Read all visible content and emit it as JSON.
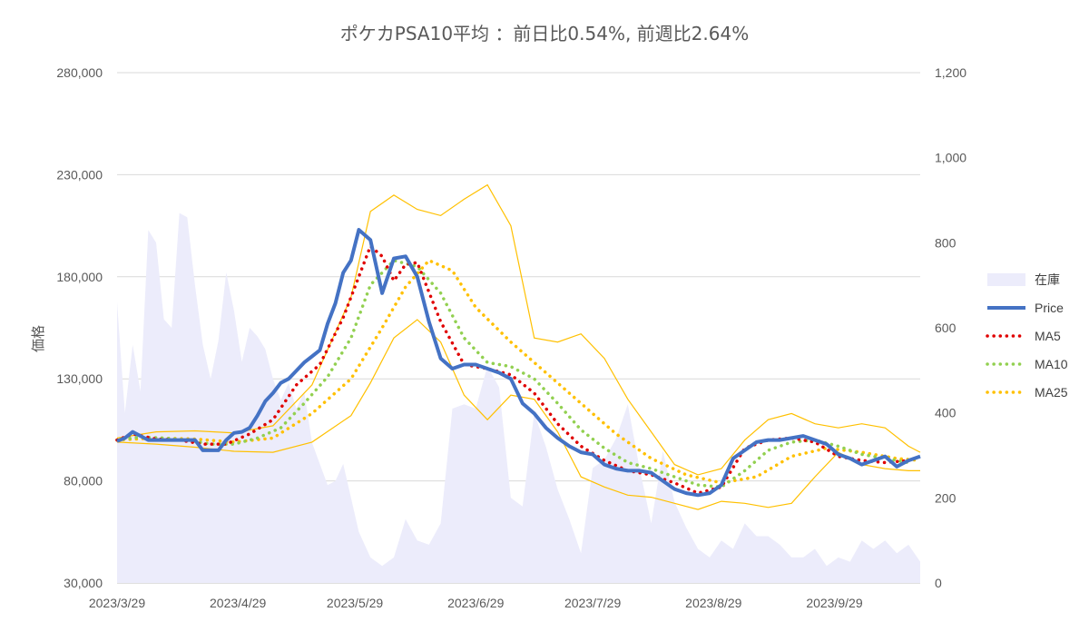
{
  "colors": {
    "stock_area": "#ececfb",
    "price": "#4472c4",
    "ma5": "#e00000",
    "ma10": "#92d050",
    "ma25": "#ffc000",
    "band": "#ffc000",
    "grid": "#d9d9d9",
    "text": "#595959"
  },
  "chart_data": {
    "type": "line",
    "title": "ポケカPSA10平均 ：前日比0.54%, 前週比2.64%",
    "ylabel": "価格",
    "y_left": {
      "ticks": [
        "30,000",
        "80,000",
        "130,000",
        "180,000",
        "230,000",
        "280,000"
      ],
      "range": [
        30000,
        280000
      ]
    },
    "y_right": {
      "ticks": [
        "0",
        "200",
        "400",
        "600",
        "800",
        "1,000",
        "1,200"
      ],
      "range": [
        0,
        1200
      ]
    },
    "x_ticks": [
      "2023/3/29",
      "2023/4/29",
      "2023/5/29",
      "2023/6/29",
      "2023/7/29",
      "2023/8/29",
      "2023/9/29"
    ],
    "x_range": [
      "2023/3/29",
      "2023/10/21"
    ],
    "grid": "horizontal",
    "legend_position": "right",
    "series": [
      {
        "name": "在庫",
        "kind": "area",
        "axis": "right",
        "x": [
          "2023/3/29",
          "2023/3/31",
          "2023/4/2",
          "2023/4/4",
          "2023/4/6",
          "2023/4/8",
          "2023/4/10",
          "2023/4/12",
          "2023/4/14",
          "2023/4/16",
          "2023/4/18",
          "2023/4/20",
          "2023/4/22",
          "2023/4/24",
          "2023/4/26",
          "2023/4/28",
          "2023/4/30",
          "2023/5/2",
          "2023/5/4",
          "2023/5/6",
          "2023/5/8",
          "2023/5/10",
          "2023/5/12",
          "2023/5/14",
          "2023/5/16",
          "2023/5/18",
          "2023/5/20",
          "2023/5/22",
          "2023/5/24",
          "2023/5/26",
          "2023/5/28",
          "2023/5/30",
          "2023/6/2",
          "2023/6/5",
          "2023/6/8",
          "2023/6/11",
          "2023/6/14",
          "2023/6/17",
          "2023/6/20",
          "2023/6/23",
          "2023/6/26",
          "2023/6/29",
          "2023/7/2",
          "2023/7/5",
          "2023/7/8",
          "2023/7/11",
          "2023/7/14",
          "2023/7/17",
          "2023/7/20",
          "2023/7/23",
          "2023/7/26",
          "2023/7/29",
          "2023/8/1",
          "2023/8/4",
          "2023/8/7",
          "2023/8/10",
          "2023/8/13",
          "2023/8/16",
          "2023/8/19",
          "2023/8/22",
          "2023/8/25",
          "2023/8/28",
          "2023/8/31",
          "2023/9/3",
          "2023/9/6",
          "2023/9/9",
          "2023/9/12",
          "2023/9/15",
          "2023/9/18",
          "2023/9/21",
          "2023/9/24",
          "2023/9/27",
          "2023/9/30",
          "2023/10/3",
          "2023/10/6",
          "2023/10/9",
          "2023/10/12",
          "2023/10/15",
          "2023/10/18",
          "2023/10/21"
        ],
        "values": [
          660,
          400,
          560,
          450,
          830,
          800,
          620,
          600,
          870,
          860,
          700,
          560,
          480,
          570,
          730,
          640,
          520,
          600,
          580,
          550,
          480,
          430,
          470,
          410,
          450,
          330,
          280,
          230,
          240,
          280,
          200,
          120,
          60,
          40,
          60,
          150,
          100,
          90,
          140,
          410,
          420,
          410,
          510,
          460,
          200,
          180,
          400,
          320,
          220,
          150,
          70,
          270,
          290,
          340,
          420,
          270,
          140,
          310,
          190,
          130,
          80,
          60,
          100,
          80,
          140,
          110,
          110,
          90,
          60,
          60,
          80,
          40,
          60,
          50,
          100,
          80,
          100,
          70,
          90,
          50
        ]
      },
      {
        "name": "Price",
        "kind": "line",
        "axis": "left",
        "x": [
          "2023/3/29",
          "2023/3/31",
          "2023/4/2",
          "2023/4/4",
          "2023/4/6",
          "2023/4/8",
          "2023/4/10",
          "2023/4/12",
          "2023/4/14",
          "2023/4/16",
          "2023/4/18",
          "2023/4/20",
          "2023/4/22",
          "2023/4/24",
          "2023/4/26",
          "2023/4/28",
          "2023/4/30",
          "2023/5/2",
          "2023/5/4",
          "2023/5/6",
          "2023/5/8",
          "2023/5/10",
          "2023/5/12",
          "2023/5/14",
          "2023/5/16",
          "2023/5/18",
          "2023/5/20",
          "2023/5/22",
          "2023/5/24",
          "2023/5/26",
          "2023/5/28",
          "2023/5/30",
          "2023/6/2",
          "2023/6/5",
          "2023/6/8",
          "2023/6/11",
          "2023/6/14",
          "2023/6/17",
          "2023/6/20",
          "2023/6/23",
          "2023/6/26",
          "2023/6/29",
          "2023/7/2",
          "2023/7/5",
          "2023/7/8",
          "2023/7/11",
          "2023/7/14",
          "2023/7/17",
          "2023/7/20",
          "2023/7/23",
          "2023/7/26",
          "2023/7/29",
          "2023/8/1",
          "2023/8/4",
          "2023/8/7",
          "2023/8/10",
          "2023/8/13",
          "2023/8/16",
          "2023/8/19",
          "2023/8/22",
          "2023/8/25",
          "2023/8/28",
          "2023/8/31",
          "2023/9/3",
          "2023/9/6",
          "2023/9/9",
          "2023/9/12",
          "2023/9/15",
          "2023/9/18",
          "2023/9/21",
          "2023/9/24",
          "2023/9/27",
          "2023/9/30",
          "2023/10/3",
          "2023/10/6",
          "2023/10/9",
          "2023/10/12",
          "2023/10/15",
          "2023/10/18",
          "2023/10/21"
        ],
        "values": [
          99500,
          101000,
          104000,
          102000,
          100000,
          100000,
          100000,
          100000,
          100000,
          100000,
          100000,
          95000,
          95000,
          95000,
          100000,
          103500,
          104000,
          106000,
          112000,
          119000,
          123000,
          128000,
          130000,
          134000,
          138000,
          141000,
          144000,
          157000,
          167000,
          182000,
          188000,
          203000,
          198000,
          172000,
          189000,
          190000,
          180000,
          158000,
          140000,
          135000,
          137000,
          137000,
          135000,
          133000,
          130000,
          118000,
          113000,
          106000,
          101000,
          97000,
          94000,
          93000,
          88000,
          86000,
          85000,
          85000,
          84000,
          80000,
          76000,
          74000,
          73000,
          74000,
          78000,
          91000,
          95000,
          99000,
          100000,
          100000,
          101000,
          102000,
          100000,
          98000,
          93000,
          91000,
          88000,
          90000,
          92000,
          87000,
          90000,
          92000
        ]
      },
      {
        "name": "MA5",
        "kind": "dotted",
        "axis": "left",
        "x": [
          "2023/3/29",
          "2023/4/2",
          "2023/4/8",
          "2023/4/14",
          "2023/4/20",
          "2023/4/26",
          "2023/5/2",
          "2023/5/8",
          "2023/5/14",
          "2023/5/20",
          "2023/5/26",
          "2023/6/2",
          "2023/6/5",
          "2023/6/8",
          "2023/6/11",
          "2023/6/14",
          "2023/6/20",
          "2023/6/26",
          "2023/7/2",
          "2023/7/8",
          "2023/7/14",
          "2023/7/20",
          "2023/7/26",
          "2023/8/1",
          "2023/8/7",
          "2023/8/13",
          "2023/8/19",
          "2023/8/25",
          "2023/8/31",
          "2023/9/6",
          "2023/9/12",
          "2023/9/18",
          "2023/9/24",
          "2023/9/30",
          "2023/10/6",
          "2023/10/12",
          "2023/10/18"
        ],
        "values": [
          100000,
          103000,
          100500,
          100000,
          98000,
          98000,
          103000,
          110000,
          127000,
          137000,
          160000,
          195000,
          190000,
          178000,
          186000,
          187000,
          158000,
          137000,
          135000,
          132000,
          123000,
          108000,
          97000,
          90000,
          85000,
          83000,
          79000,
          74000,
          77000,
          96000,
          100000,
          101000,
          99000,
          92000,
          90000,
          89000,
          90000
        ]
      },
      {
        "name": "MA10",
        "kind": "dotted",
        "axis": "left",
        "x": [
          "2023/3/29",
          "2023/4/4",
          "2023/4/10",
          "2023/4/16",
          "2023/4/22",
          "2023/4/28",
          "2023/5/4",
          "2023/5/10",
          "2023/5/16",
          "2023/5/22",
          "2023/5/28",
          "2023/6/2",
          "2023/6/8",
          "2023/6/14",
          "2023/6/20",
          "2023/6/26",
          "2023/7/2",
          "2023/7/8",
          "2023/7/14",
          "2023/7/20",
          "2023/7/26",
          "2023/8/1",
          "2023/8/7",
          "2023/8/13",
          "2023/8/19",
          "2023/8/25",
          "2023/8/31",
          "2023/9/6",
          "2023/9/12",
          "2023/9/18",
          "2023/9/24",
          "2023/9/30",
          "2023/10/6",
          "2023/10/12",
          "2023/10/18"
        ],
        "values": [
          100000,
          101500,
          101000,
          100000,
          98000,
          98000,
          101000,
          106000,
          118000,
          131000,
          150000,
          176000,
          188000,
          185000,
          172000,
          150000,
          138000,
          136000,
          130000,
          118000,
          105000,
          96000,
          89000,
          86000,
          82000,
          78000,
          77000,
          85000,
          95000,
          99000,
          100000,
          97000,
          93000,
          91000,
          89000
        ]
      },
      {
        "name": "MA25",
        "kind": "dotted",
        "axis": "left",
        "x": [
          "2023/3/29",
          "2023/4/8",
          "2023/4/18",
          "2023/4/28",
          "2023/5/8",
          "2023/5/18",
          "2023/5/28",
          "2023/6/5",
          "2023/6/11",
          "2023/6/17",
          "2023/6/23",
          "2023/6/29",
          "2023/7/8",
          "2023/7/17",
          "2023/7/26",
          "2023/8/4",
          "2023/8/13",
          "2023/8/22",
          "2023/8/31",
          "2023/9/9",
          "2023/9/18",
          "2023/9/27",
          "2023/10/6",
          "2023/10/15",
          "2023/10/21"
        ],
        "values": [
          100000,
          101000,
          100500,
          99000,
          101000,
          113000,
          130000,
          155000,
          175000,
          188000,
          183000,
          165000,
          148000,
          133000,
          118000,
          103000,
          91000,
          83000,
          79000,
          82000,
          92000,
          96000,
          94000,
          91000,
          90000
        ]
      },
      {
        "name": "Upper band",
        "kind": "band",
        "axis": "left",
        "legend": false,
        "x": [
          "2023/3/29",
          "2023/4/8",
          "2023/4/18",
          "2023/4/28",
          "2023/5/8",
          "2023/5/18",
          "2023/5/28",
          "2023/6/2",
          "2023/6/8",
          "2023/6/14",
          "2023/6/20",
          "2023/6/26",
          "2023/7/2",
          "2023/7/8",
          "2023/7/14",
          "2023/7/20",
          "2023/7/26",
          "2023/8/1",
          "2023/8/7",
          "2023/8/13",
          "2023/8/19",
          "2023/8/25",
          "2023/8/31",
          "2023/9/6",
          "2023/9/12",
          "2023/9/18",
          "2023/9/24",
          "2023/9/30",
          "2023/10/6",
          "2023/10/12",
          "2023/10/18",
          "2023/10/21"
        ],
        "values": [
          101000,
          104000,
          104500,
          103500,
          107000,
          127000,
          170000,
          212000,
          220000,
          213000,
          210000,
          218000,
          225000,
          205000,
          150000,
          148000,
          152000,
          140000,
          120000,
          104000,
          88000,
          83000,
          86000,
          100000,
          110000,
          113000,
          108000,
          106000,
          108000,
          106000,
          97000,
          94000
        ]
      },
      {
        "name": "Lower band",
        "kind": "band",
        "axis": "left",
        "legend": false,
        "x": [
          "2023/3/29",
          "2023/4/8",
          "2023/4/18",
          "2023/4/28",
          "2023/5/8",
          "2023/5/18",
          "2023/5/28",
          "2023/6/2",
          "2023/6/8",
          "2023/6/14",
          "2023/6/20",
          "2023/6/26",
          "2023/7/2",
          "2023/7/8",
          "2023/7/14",
          "2023/7/20",
          "2023/7/26",
          "2023/8/1",
          "2023/8/7",
          "2023/8/13",
          "2023/8/19",
          "2023/8/25",
          "2023/8/31",
          "2023/9/6",
          "2023/9/12",
          "2023/9/18",
          "2023/9/24",
          "2023/9/30",
          "2023/10/6",
          "2023/10/12",
          "2023/10/18",
          "2023/10/21"
        ],
        "values": [
          99000,
          98000,
          96500,
          94500,
          94000,
          99000,
          112000,
          128000,
          150000,
          159000,
          148000,
          122000,
          110000,
          122000,
          120000,
          104000,
          82000,
          77000,
          73000,
          72000,
          69000,
          66000,
          70000,
          69000,
          67000,
          69000,
          82000,
          94000,
          88000,
          86000,
          85000,
          85000
        ]
      }
    ]
  }
}
